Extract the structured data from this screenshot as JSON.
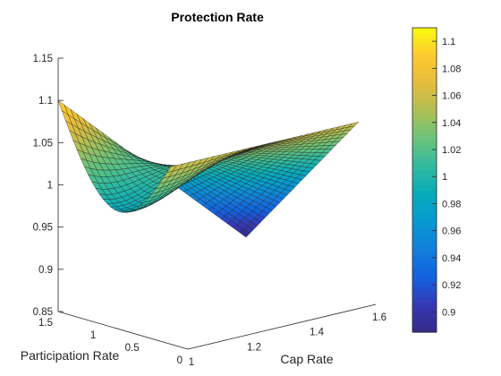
{
  "chart_data": {
    "type": "surface",
    "title": "Protection Rate",
    "xlabel": "Cap Rate",
    "ylabel": "Participation Rate",
    "zlabel": "",
    "x_range": [
      1,
      1.6
    ],
    "y_range": [
      0,
      1.5
    ],
    "z_range": [
      0.85,
      1.15
    ],
    "x_ticks": [
      "1",
      "1.2",
      "1.4",
      "1.6"
    ],
    "y_ticks": [
      "0",
      "0.5",
      "1",
      "1.5"
    ],
    "z_ticks": [
      "0.85",
      "0.9",
      "0.95",
      "1",
      "1.05",
      "1.1",
      "1.15"
    ],
    "surface": {
      "x_domain": [
        1.0,
        1.6
      ],
      "y_domain": [
        0.2,
        1.5
      ],
      "corner_values": {
        "x_min_y_max": 1.1,
        "x_min_y_min": 1.06,
        "x_max_y_min": 1.06,
        "x_max_y_max": 0.885
      },
      "min_value": 0.885,
      "max_value": 1.1
    },
    "colorbar": {
      "colormap": "parula",
      "range": [
        0.885,
        1.11
      ],
      "ticks": [
        "0.9",
        "0.92",
        "0.94",
        "0.96",
        "0.98",
        "1",
        "1.02",
        "1.04",
        "1.06",
        "1.08",
        "1.1"
      ]
    },
    "grid": false,
    "legend": "none"
  }
}
